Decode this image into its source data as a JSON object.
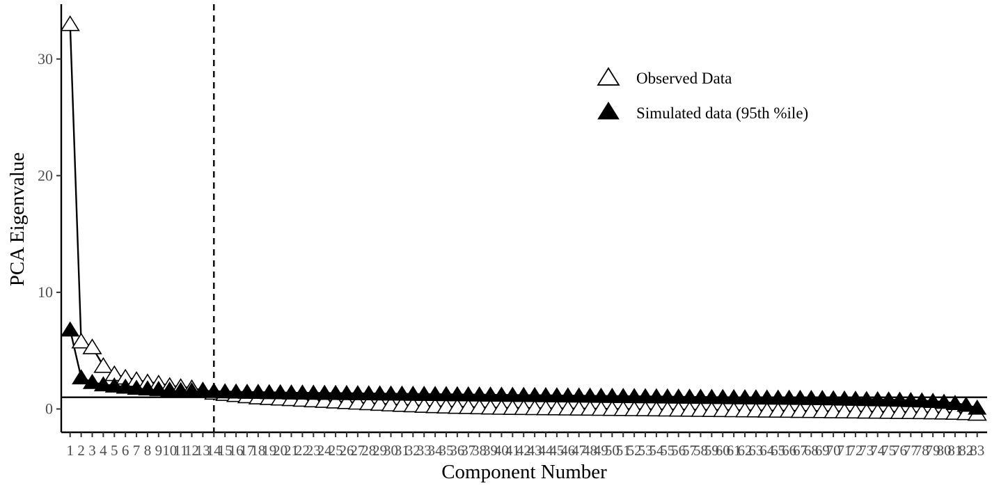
{
  "chart_data": {
    "type": "scatter",
    "title": "",
    "xlabel": "Component Number",
    "ylabel": "PCA Eigenvalue",
    "xlim": [
      0.2,
      83.9
    ],
    "ylim": [
      -2,
      34.7
    ],
    "yticks": [
      0,
      10,
      20,
      30
    ],
    "x": [
      1,
      2,
      3,
      4,
      5,
      6,
      7,
      8,
      9,
      10,
      11,
      12,
      13,
      14,
      15,
      16,
      17,
      18,
      19,
      20,
      21,
      22,
      23,
      24,
      25,
      26,
      27,
      28,
      29,
      30,
      31,
      32,
      33,
      34,
      35,
      36,
      37,
      38,
      39,
      40,
      41,
      42,
      43,
      44,
      45,
      46,
      47,
      48,
      49,
      50,
      51,
      52,
      53,
      54,
      55,
      56,
      57,
      58,
      59,
      60,
      61,
      62,
      63,
      64,
      65,
      66,
      67,
      68,
      69,
      70,
      71,
      72,
      73,
      74,
      75,
      76,
      77,
      78,
      79,
      80,
      81,
      82,
      83
    ],
    "series": [
      {
        "name": "Observed Data",
        "marker": "open-triangle",
        "connected": true,
        "values": [
          33.0,
          5.8,
          5.3,
          3.7,
          3.0,
          2.7,
          2.5,
          2.3,
          2.2,
          2.0,
          1.9,
          1.8,
          1.6,
          1.4,
          1.3,
          1.2,
          1.1,
          1.0,
          0.95,
          0.9,
          0.85,
          0.8,
          0.75,
          0.7,
          0.65,
          0.6,
          0.55,
          0.5,
          0.45,
          0.4,
          0.36,
          0.32,
          0.28,
          0.25,
          0.22,
          0.19,
          0.17,
          0.15,
          0.13,
          0.11,
          0.1,
          0.09,
          0.08,
          0.07,
          0.06,
          0.05,
          0.04,
          0.03,
          0.02,
          0.01,
          0.0,
          -0.01,
          -0.02,
          -0.03,
          -0.04,
          -0.05,
          -0.06,
          -0.07,
          -0.08,
          -0.09,
          -0.1,
          -0.11,
          -0.12,
          -0.13,
          -0.14,
          -0.15,
          -0.16,
          -0.17,
          -0.18,
          -0.19,
          -0.2,
          -0.21,
          -0.22,
          -0.23,
          -0.24,
          -0.25,
          -0.26,
          -0.27,
          -0.28,
          -0.3,
          -0.32,
          -0.35,
          -0.4
        ]
      },
      {
        "name": "Simulated data (95th %ile)",
        "marker": "filled-triangle",
        "connected": true,
        "values": [
          6.8,
          2.7,
          2.3,
          2.1,
          2.0,
          1.9,
          1.8,
          1.75,
          1.7,
          1.65,
          1.6,
          1.58,
          1.55,
          1.53,
          1.5,
          1.48,
          1.46,
          1.45,
          1.43,
          1.42,
          1.4,
          1.39,
          1.38,
          1.37,
          1.36,
          1.35,
          1.34,
          1.33,
          1.32,
          1.31,
          1.3,
          1.29,
          1.28,
          1.27,
          1.26,
          1.25,
          1.24,
          1.23,
          1.22,
          1.21,
          1.2,
          1.19,
          1.18,
          1.17,
          1.16,
          1.15,
          1.14,
          1.13,
          1.12,
          1.11,
          1.1,
          1.09,
          1.08,
          1.07,
          1.06,
          1.05,
          1.04,
          1.03,
          1.02,
          1.01,
          1.0,
          0.99,
          0.98,
          0.97,
          0.96,
          0.95,
          0.94,
          0.93,
          0.92,
          0.9,
          0.88,
          0.86,
          0.84,
          0.82,
          0.8,
          0.78,
          0.75,
          0.72,
          0.68,
          0.6,
          0.5,
          0.35,
          0.1
        ]
      }
    ],
    "reference_lines": {
      "horizontal_y": 1,
      "vertical_dashed_x": 14
    },
    "legend": {
      "placement": "top-right",
      "entries": [
        "Observed Data",
        "Simulated data (95th %ile)"
      ]
    },
    "grid": false
  }
}
